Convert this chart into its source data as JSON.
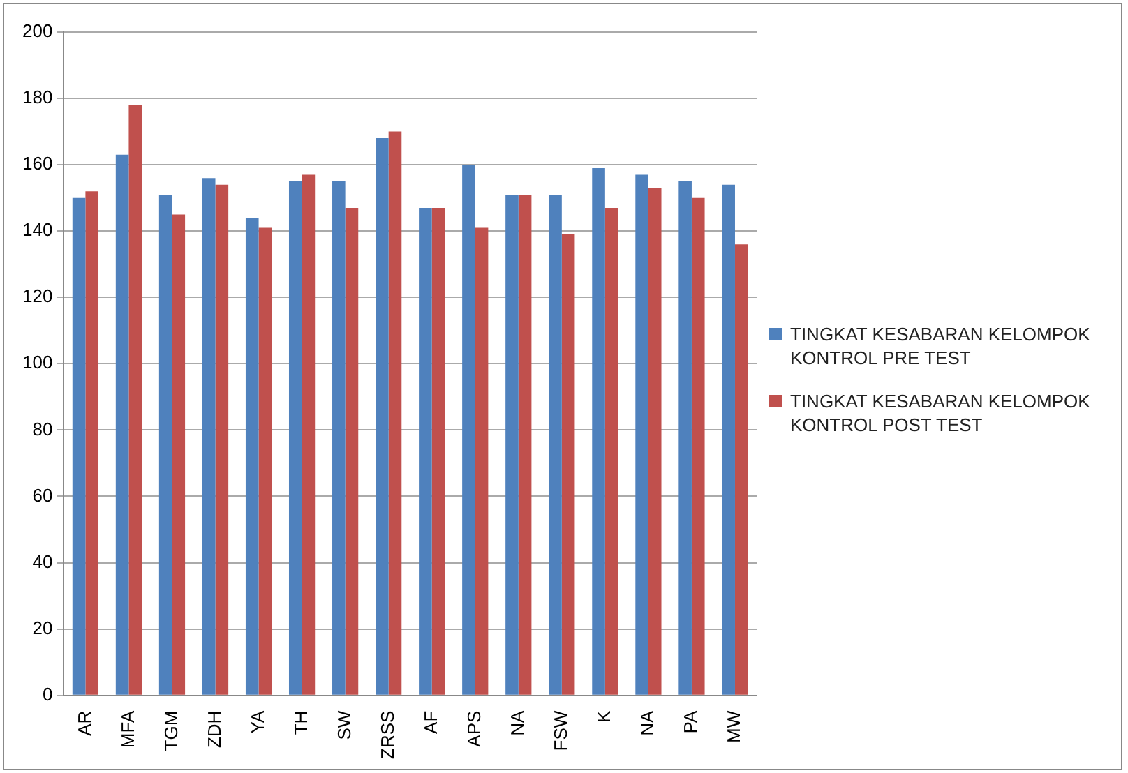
{
  "chart_data": {
    "type": "bar",
    "categories": [
      "AR",
      "MFA",
      "TGM",
      "ZDH",
      "YA",
      "TH",
      "SW",
      "ZRSS",
      "AF",
      "APS",
      "NA",
      "FSW",
      "K",
      "NA",
      "PA",
      "MW"
    ],
    "series": [
      {
        "name": "TINGKAT KESABARAN KELOMPOK KONTROL PRE TEST",
        "color": "#4f81bd",
        "values": [
          150,
          163,
          151,
          156,
          144,
          155,
          155,
          168,
          147,
          160,
          151,
          151,
          159,
          157,
          155,
          154
        ]
      },
      {
        "name": "TINGKAT KESABARAN KELOMPOK KONTROL POST TEST",
        "color": "#c0504d",
        "values": [
          152,
          178,
          145,
          154,
          141,
          157,
          147,
          170,
          147,
          141,
          151,
          139,
          147,
          153,
          150,
          136
        ]
      }
    ],
    "ylim": [
      0,
      200
    ],
    "yticks": [
      0,
      20,
      40,
      60,
      80,
      100,
      120,
      140,
      160,
      180,
      200
    ],
    "grid": "y",
    "legend": "right"
  }
}
